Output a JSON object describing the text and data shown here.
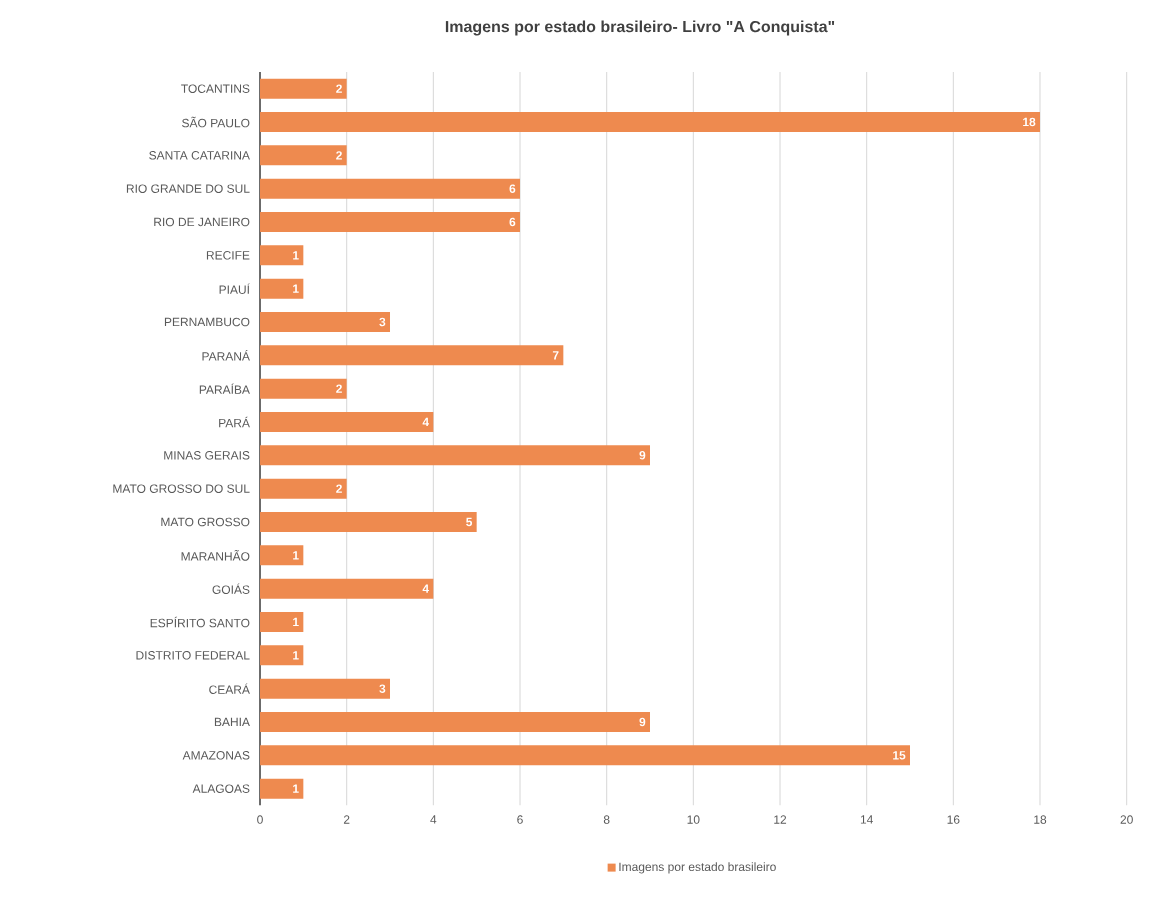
{
  "chart_data": {
    "type": "bar",
    "orientation": "horizontal",
    "title": "Imagens por estado brasileiro- Livro \"A Conquista\"",
    "categories": [
      "TOCANTINS",
      "SÃO PAULO",
      "SANTA CATARINA",
      "RIO GRANDE DO SUL",
      "RIO DE JANEIRO",
      "RECIFE",
      "PIAUÍ",
      "PERNAMBUCO",
      "PARANÁ",
      "PARAÍBA",
      "PARÁ",
      "MINAS GERAIS",
      "MATO GROSSO DO SUL",
      "MATO GROSSO",
      "MARANHÃO",
      "GOIÁS",
      "ESPÍRITO SANTO",
      "DISTRITO FEDERAL",
      "CEARÁ",
      "BAHIA",
      "AMAZONAS",
      "ALAGOAS"
    ],
    "series": [
      {
        "name": "Imagens por estado brasileiro",
        "color": "#ee8a4f",
        "values": [
          2,
          18,
          2,
          6,
          6,
          1,
          1,
          3,
          7,
          2,
          4,
          9,
          2,
          5,
          1,
          4,
          1,
          1,
          3,
          9,
          15,
          1
        ]
      }
    ],
    "xlim": [
      0,
      20
    ],
    "xticks": [
      0,
      2,
      4,
      6,
      8,
      10,
      12,
      14,
      16,
      18,
      20
    ],
    "grid": "x",
    "legend": "bottom",
    "data_labels": true
  }
}
